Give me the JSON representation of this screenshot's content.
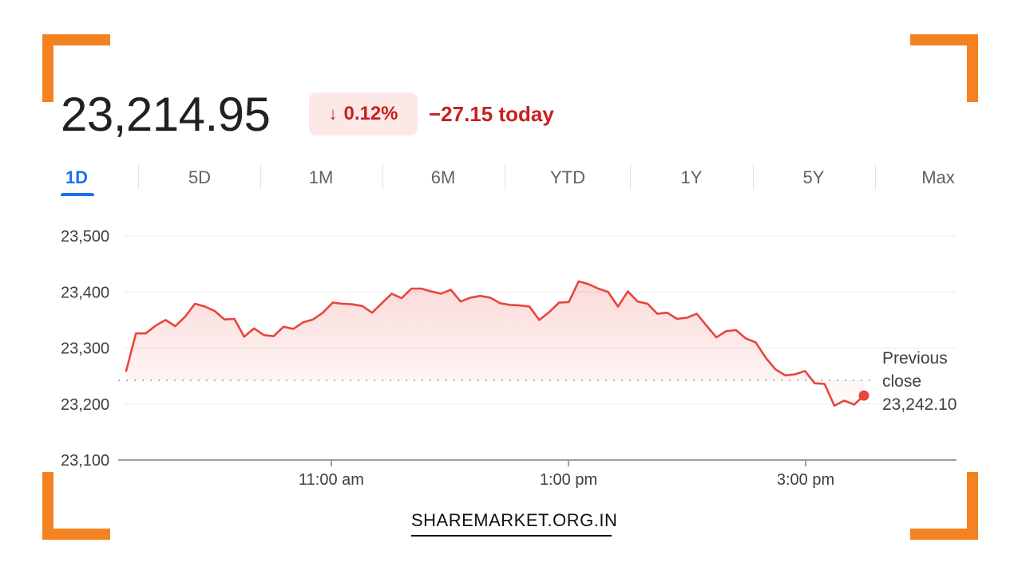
{
  "colors": {
    "accent": "#f58220",
    "negative": "#c5221f",
    "negative_bg": "#fce8e6",
    "line": "#e8453c",
    "tab_active": "#1a73e8"
  },
  "quote": {
    "price": "23,214.95",
    "percent_change": "0.12%",
    "direction_icon": "arrow-down-icon",
    "change_today": "−27.15 today"
  },
  "tabs": [
    {
      "label": "1D",
      "active": true
    },
    {
      "label": "5D",
      "active": false
    },
    {
      "label": "1M",
      "active": false
    },
    {
      "label": "6M",
      "active": false
    },
    {
      "label": "YTD",
      "active": false
    },
    {
      "label": "1Y",
      "active": false
    },
    {
      "label": "5Y",
      "active": false
    },
    {
      "label": "Max",
      "active": false
    }
  ],
  "chart_data": {
    "type": "line",
    "xlabel": "",
    "ylabel": "",
    "ylim": [
      23100,
      23500
    ],
    "y_ticks": [
      "23,500",
      "23,400",
      "23,300",
      "23,200",
      "23,100"
    ],
    "y_tick_values": [
      23500,
      23400,
      23300,
      23200,
      23100
    ],
    "x_range": [
      "09:15",
      "15:30"
    ],
    "x_ticks": [
      {
        "time": "11:00",
        "label": "11:00 am"
      },
      {
        "time": "13:00",
        "label": "1:00 pm"
      },
      {
        "time": "15:00",
        "label": "3:00 pm"
      }
    ],
    "grid": true,
    "previous_close": {
      "label_lines": [
        "Previous",
        "close"
      ],
      "value": 23242.1,
      "value_label": "23,242.10"
    },
    "series": [
      {
        "x": [
          "09:15",
          "09:20",
          "09:25",
          "09:30",
          "09:35",
          "09:40",
          "09:45",
          "09:50",
          "09:55",
          "10:00",
          "10:05",
          "10:10",
          "10:15",
          "10:20",
          "10:25",
          "10:30",
          "10:35",
          "10:40",
          "10:45",
          "10:50",
          "10:55",
          "11:00",
          "11:05",
          "11:10",
          "11:15",
          "11:20",
          "11:25",
          "11:30",
          "11:35",
          "11:40",
          "11:45",
          "11:50",
          "11:55",
          "12:00",
          "12:05",
          "12:10",
          "12:15",
          "12:20",
          "12:25",
          "12:30",
          "12:35",
          "12:40",
          "12:45",
          "12:50",
          "12:55",
          "13:00",
          "13:05",
          "13:10",
          "13:15",
          "13:20",
          "13:25",
          "13:30",
          "13:35",
          "13:40",
          "13:45",
          "13:50",
          "13:55",
          "14:00",
          "14:05",
          "14:10",
          "14:15",
          "14:20",
          "14:25",
          "14:30",
          "14:35",
          "14:40",
          "14:45",
          "14:50",
          "14:55",
          "15:00",
          "15:05",
          "15:10",
          "15:15",
          "15:20",
          "15:25",
          "15:30"
        ],
        "values": [
          23259,
          23326,
          23326,
          23340,
          23350,
          23339,
          23356,
          23379,
          23374,
          23366,
          23351,
          23352,
          23320,
          23335,
          23323,
          23321,
          23338,
          23334,
          23346,
          23351,
          23363,
          23381,
          23379,
          23378,
          23375,
          23363,
          23380,
          23397,
          23389,
          23406,
          23406,
          23401,
          23397,
          23404,
          23383,
          23390,
          23393,
          23390,
          23380,
          23377,
          23376,
          23374,
          23350,
          23364,
          23381,
          23382,
          23419,
          23414,
          23406,
          23400,
          23374,
          23401,
          23383,
          23379,
          23361,
          23363,
          23352,
          23354,
          23361,
          23340,
          23319,
          23330,
          23332,
          23317,
          23310,
          23283,
          23262,
          23251,
          23253,
          23259,
          23237,
          23236,
          23197,
          23206,
          23199,
          23215
        ]
      }
    ]
  },
  "footer": {
    "label": "SHAREMARKET.ORG.IN"
  }
}
